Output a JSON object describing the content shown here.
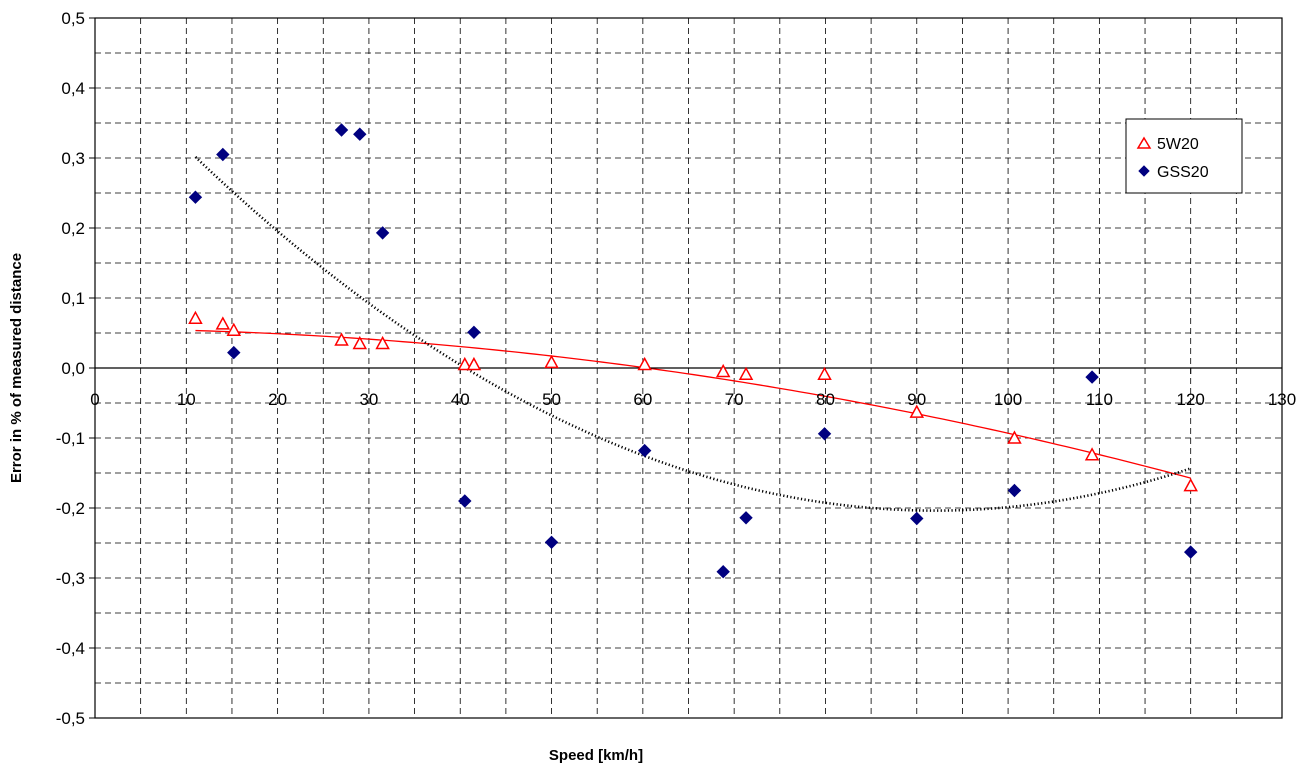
{
  "chart_data": {
    "type": "scatter",
    "xlabel": "Speed [km/h]",
    "ylabel": "Error in % of measured distance",
    "xlim": [
      0,
      130
    ],
    "ylim": [
      -0.5,
      0.5
    ],
    "x_ticks": [
      0,
      10,
      20,
      30,
      40,
      50,
      60,
      70,
      80,
      90,
      100,
      110,
      120,
      130
    ],
    "y_ticks": [
      -0.5,
      -0.4,
      -0.3,
      -0.2,
      -0.1,
      0.0,
      0.1,
      0.2,
      0.3,
      0.4,
      0.5
    ],
    "x_tick_labels": [
      "0",
      "10",
      "20",
      "30",
      "40",
      "50",
      "60",
      "70",
      "80",
      "90",
      "100",
      "110",
      "120",
      "130"
    ],
    "y_tick_labels": [
      "-0,5",
      "-0,4",
      "-0,3",
      "-0,2",
      "-0,1",
      "0,0",
      "0,1",
      "0,2",
      "0,3",
      "0,4",
      "0,5"
    ],
    "grid": true,
    "legend_position": "top-right",
    "series": [
      {
        "name": "5W20",
        "marker": "triangle-open",
        "color": "#ff0000",
        "x": [
          11,
          14,
          15.2,
          27,
          29,
          31.5,
          40.5,
          41.5,
          50,
          60.2,
          68.8,
          71.3,
          79.9,
          90,
          100.7,
          109.2,
          120
        ],
        "y": [
          0.071,
          0.063,
          0.054,
          0.04,
          0.035,
          0.035,
          0.005,
          0.005,
          0.008,
          0.005,
          -0.005,
          -0.009,
          -0.009,
          -0.063,
          -0.1,
          -0.124,
          -0.168
        ],
        "trendline": {
          "kind": "polynomial",
          "degree": 2,
          "style": "solid",
          "color": "#ff0000",
          "x_from": 11,
          "x_to": 120
        }
      },
      {
        "name": "GSS20",
        "marker": "diamond",
        "color": "#000080",
        "x": [
          11,
          14,
          15.2,
          27,
          29,
          31.5,
          40.5,
          41.5,
          50,
          60.2,
          68.8,
          71.3,
          79.9,
          90,
          100.7,
          109.2,
          120
        ],
        "y": [
          0.244,
          0.305,
          0.022,
          0.34,
          0.334,
          0.193,
          -0.19,
          0.051,
          -0.249,
          -0.118,
          -0.291,
          -0.214,
          -0.094,
          -0.215,
          -0.175,
          -0.013,
          -0.263
        ],
        "trendline": {
          "kind": "polynomial",
          "degree": 2,
          "style": "dotted",
          "color": "#000000",
          "x_from": 11,
          "x_to": 120
        }
      }
    ]
  }
}
